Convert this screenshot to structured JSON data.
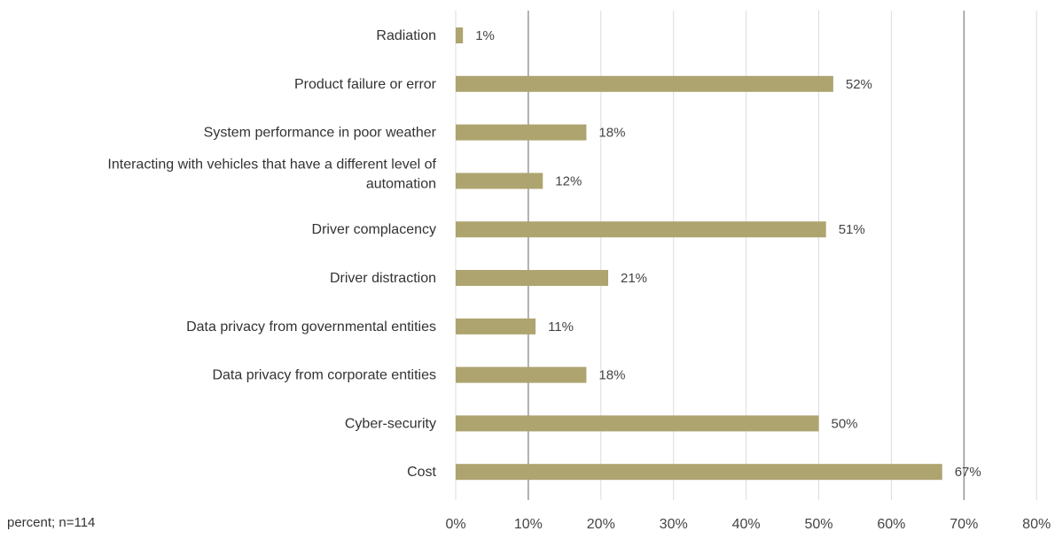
{
  "note": "percent; n=114",
  "colors": {
    "bar": "#aea46f",
    "grid": "#dcdcdc",
    "axis": "#888888",
    "text": "#333333"
  },
  "chart_data": {
    "type": "bar",
    "orientation": "horizontal",
    "title": "",
    "xlabel": "",
    "ylabel": "",
    "xlim": [
      0,
      80
    ],
    "x_ticks": [
      0,
      10,
      20,
      30,
      40,
      50,
      60,
      70,
      80
    ],
    "x_tick_labels": [
      "0%",
      "10%",
      "20%",
      "30%",
      "40%",
      "50%",
      "60%",
      "70%",
      "80%"
    ],
    "grid": true,
    "categories": [
      "Radiation",
      "Product failure or error",
      "System performance in poor weather",
      [
        "Interacting with vehicles that have a different level of",
        "automation"
      ],
      "Driver complacency",
      "Driver distraction",
      "Data privacy from governmental entities",
      "Data privacy from corporate entities",
      "Cyber-security",
      "Cost"
    ],
    "values": [
      1,
      52,
      18,
      12,
      51,
      21,
      11,
      18,
      50,
      67
    ],
    "value_labels": [
      "1%",
      "52%",
      "18%",
      "12%",
      "51%",
      "21%",
      "11%",
      "18%",
      "50%",
      "67%"
    ]
  }
}
